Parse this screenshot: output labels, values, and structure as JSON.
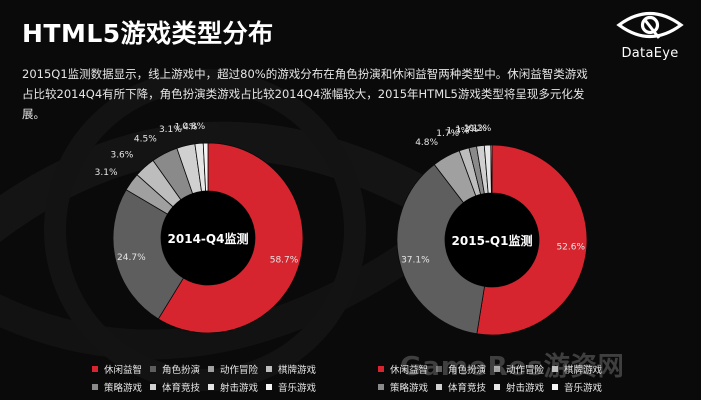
{
  "slide": {
    "title": "HTML5游戏类型分布",
    "description": "2015Q1监测数据显示，线上游戏中，超过80%的游戏分布在角色扮演和休闲益智两种类型中。休闲益智类游戏占比较2014Q4有所下降，角色扮演类游戏占比较2014Q4涨幅较大，2015年HTML5游戏类型将呈现多元化发展。",
    "logo_text": "DataEye",
    "watermark": "GameRes游资网"
  },
  "colors": {
    "background": "#0a0a0a",
    "label": "#e6e6e6",
    "series": [
      "#d6252f",
      "#5e5e5e",
      "#a0a0a0",
      "#bdbdbd",
      "#8a8a8a",
      "#d0d0d0",
      "#e6e6e6",
      "#f5f5f5"
    ]
  },
  "chart_data": [
    {
      "type": "pie",
      "center_label": "2014-Q4监测",
      "categories": [
        "休闲益智",
        "角色扮演",
        "动作冒险",
        "棋牌游戏",
        "策略游戏",
        "体育竞技",
        "射击游戏",
        "音乐游戏"
      ],
      "values": [
        58.7,
        24.7,
        3.1,
        3.6,
        4.5,
        3.1,
        1.4,
        0.8
      ],
      "labels": [
        "58.7%",
        "24.7%",
        "3.1%",
        "3.6%",
        "4.5%",
        "3.1%",
        "1.4%",
        "0.8%"
      ]
    },
    {
      "type": "pie",
      "center_label": "2015-Q1监测",
      "categories": [
        "休闲益智",
        "角色扮演",
        "动作冒险",
        "棋牌游戏",
        "策略游戏",
        "体育竞技",
        "射击游戏",
        "音乐游戏"
      ],
      "values": [
        52.6,
        37.1,
        4.8,
        1.7,
        1.3,
        1.3,
        1.1,
        0.2
      ],
      "labels": [
        "52.6%",
        "37.1%",
        "4.8%",
        "1.7%",
        "1.3%",
        "1.3%",
        "1.1%",
        "0.2%"
      ]
    }
  ]
}
